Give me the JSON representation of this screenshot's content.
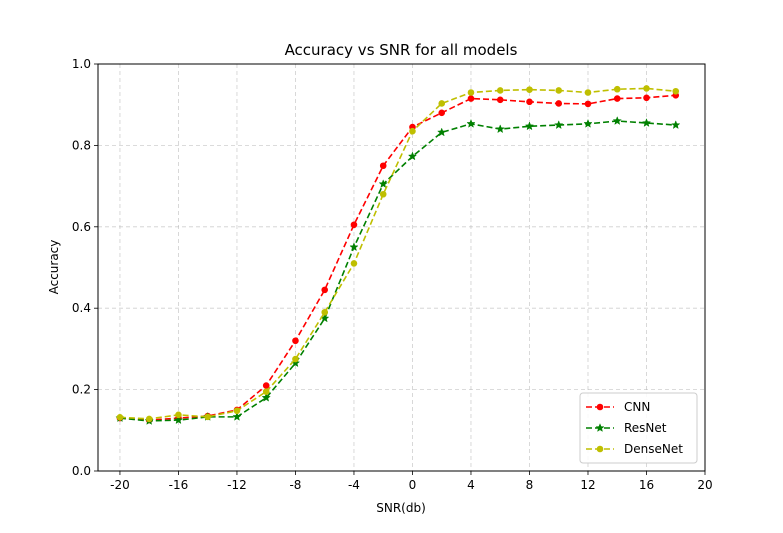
{
  "chart_data": {
    "type": "line",
    "title": "Accuracy vs SNR for all models",
    "xlabel": "SNR(db)",
    "ylabel": "Accuracy",
    "xlim": [
      -21.5,
      20
    ],
    "ylim": [
      0,
      1
    ],
    "xticks": [
      -20,
      -16,
      -12,
      -8,
      -4,
      0,
      4,
      8,
      12,
      16,
      20
    ],
    "yticks": [
      0.0,
      0.2,
      0.4,
      0.6,
      0.8,
      1.0
    ],
    "ytick_labels": [
      "0.0",
      "0.2",
      "0.4",
      "0.6",
      "0.8",
      "1.0"
    ],
    "grid": true,
    "legend_position": "lower-right",
    "x": [
      -20,
      -18,
      -16,
      -14,
      -12,
      -10,
      -8,
      -6,
      -4,
      -2,
      0,
      2,
      4,
      6,
      8,
      10,
      12,
      14,
      16,
      18
    ],
    "series": [
      {
        "name": "CNN",
        "color": "#ff0000",
        "marker": "circle",
        "values": [
          0.13,
          0.125,
          0.13,
          0.135,
          0.15,
          0.21,
          0.32,
          0.445,
          0.605,
          0.75,
          0.845,
          0.88,
          0.915,
          0.912,
          0.907,
          0.903,
          0.902,
          0.915,
          0.917,
          0.923
        ]
      },
      {
        "name": "ResNet",
        "color": "#008000",
        "marker": "star",
        "values": [
          0.13,
          0.123,
          0.125,
          0.133,
          0.133,
          0.18,
          0.265,
          0.375,
          0.55,
          0.705,
          0.773,
          0.832,
          0.853,
          0.84,
          0.847,
          0.85,
          0.853,
          0.86,
          0.855,
          0.85
        ]
      },
      {
        "name": "DenseNet",
        "color": "#bfbf00",
        "marker": "circle",
        "values": [
          0.132,
          0.128,
          0.138,
          0.133,
          0.148,
          0.195,
          0.275,
          0.39,
          0.51,
          0.68,
          0.835,
          0.903,
          0.93,
          0.935,
          0.937,
          0.935,
          0.93,
          0.938,
          0.94,
          0.933
        ]
      }
    ]
  }
}
